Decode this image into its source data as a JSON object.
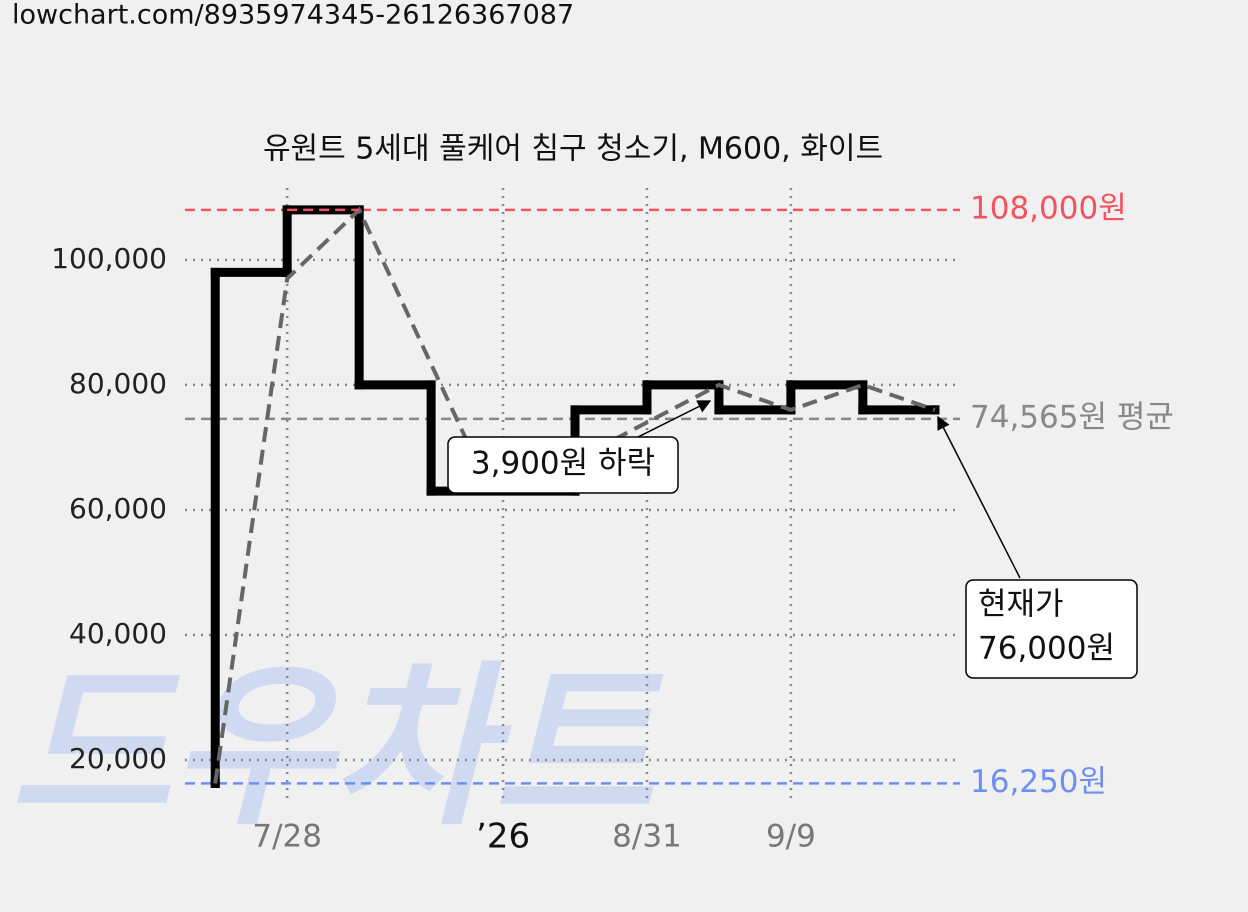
{
  "page_url": "lowchart.com/8935974345-26126367087",
  "watermark": "드우차트",
  "chart_data": {
    "type": "line",
    "title": "유원트 5세대 풀케어 침구 청소기, M600, 화이트",
    "series": [
      {
        "step": true,
        "color": "#000000",
        "x": [
          0,
          0,
          1,
          2,
          3,
          5,
          6,
          7,
          8,
          9,
          10
        ],
        "values": [
          16250,
          98000,
          108000,
          80000,
          63000,
          76000,
          80000,
          76000,
          80000,
          76000,
          76000
        ]
      },
      {
        "dashed": true,
        "color": "#666666",
        "x": [
          0,
          1,
          2,
          3.5,
          5.5,
          7,
          8,
          9,
          10
        ],
        "values": [
          16250,
          97000,
          108000,
          71000,
          71000,
          80000,
          76000,
          80000,
          76000
        ]
      }
    ],
    "xlim": [
      -0.42,
      10.35
    ],
    "xticks": [
      {
        "value": 1,
        "label": "7/28"
      },
      {
        "value": 4,
        "label": "’26"
      },
      {
        "value": 6,
        "label": "8/31"
      },
      {
        "value": 8,
        "label": "9/9"
      }
    ],
    "ylim": [
      13600,
      111500
    ],
    "yticks": [
      {
        "value": 20000,
        "label": "20,000"
      },
      {
        "value": 40000,
        "label": "40,000"
      },
      {
        "value": 60000,
        "label": "60,000"
      },
      {
        "value": 80000,
        "label": "80,000"
      },
      {
        "value": 100000,
        "label": "100,000"
      }
    ],
    "grid": true,
    "reference_lines": [
      {
        "value": 108000,
        "label": "108,000원",
        "color": "#f0555f"
      },
      {
        "value": 74565,
        "label": "74,565원 평균",
        "color": "#888888"
      },
      {
        "value": 16250,
        "label": "16,250원",
        "color": "#6f8ff0"
      }
    ],
    "annotations": [
      {
        "text": "3,900원 하락"
      },
      {
        "lines": [
          "현재가",
          "76,000원"
        ]
      }
    ]
  }
}
